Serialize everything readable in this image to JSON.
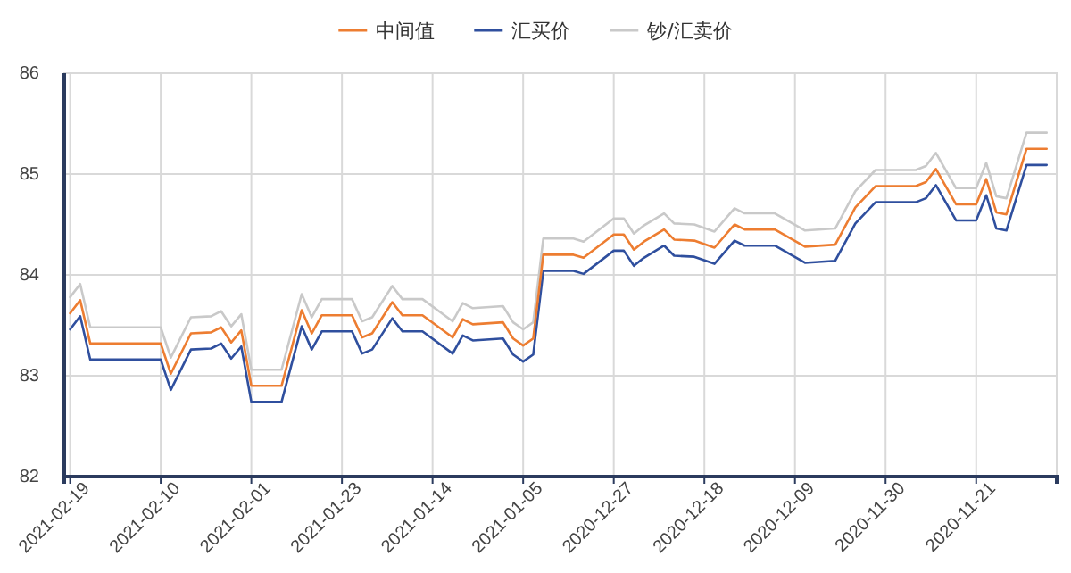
{
  "chart_data": {
    "type": "line",
    "x": [
      "2021-02-19",
      "2021-02-18",
      "2021-02-17",
      "2021-02-10",
      "2021-02-09",
      "2021-02-07",
      "2021-02-05",
      "2021-02-04",
      "2021-02-03",
      "2021-02-02",
      "2021-02-01",
      "2021-01-29",
      "2021-01-27",
      "2021-01-26",
      "2021-01-25",
      "2021-01-22",
      "2021-01-21",
      "2021-01-20",
      "2021-01-18",
      "2021-01-17",
      "2021-01-15",
      "2021-01-12",
      "2021-01-11",
      "2021-01-10",
      "2021-01-07",
      "2021-01-06",
      "2021-01-05",
      "2021-01-04",
      "2021-01-03",
      "2020-12-31",
      "2020-12-30",
      "2020-12-27",
      "2020-12-26",
      "2020-12-25",
      "2020-12-24",
      "2020-12-22",
      "2020-12-21",
      "2020-12-19",
      "2020-12-17",
      "2020-12-15",
      "2020-12-14",
      "2020-12-11",
      "2020-12-08",
      "2020-12-05",
      "2020-12-03",
      "2020-12-01",
      "2020-11-27",
      "2020-11-26",
      "2020-11-25",
      "2020-11-23",
      "2020-11-21",
      "2020-11-20",
      "2020-11-19",
      "2020-11-18",
      "2020-11-16",
      "2020-11-14"
    ],
    "series": [
      {
        "name": "中间值",
        "color": "#ed7d31",
        "values": [
          83.62,
          83.75,
          83.32,
          83.32,
          83.02,
          83.42,
          83.43,
          83.48,
          83.33,
          83.45,
          82.9,
          82.9,
          83.65,
          83.42,
          83.6,
          83.6,
          83.38,
          83.42,
          83.73,
          83.6,
          83.6,
          83.38,
          83.56,
          83.51,
          83.53,
          83.37,
          83.3,
          83.37,
          84.2,
          84.2,
          84.17,
          84.4,
          84.4,
          84.25,
          84.33,
          84.45,
          84.35,
          84.34,
          84.27,
          84.5,
          84.45,
          84.45,
          84.28,
          84.3,
          84.67,
          84.88,
          84.88,
          84.92,
          85.05,
          84.7,
          84.7,
          84.95,
          84.62,
          84.6,
          85.25,
          85.25
        ]
      },
      {
        "name": "汇买价",
        "color": "#2f4f9e",
        "values": [
          83.46,
          83.59,
          83.16,
          83.16,
          82.86,
          83.26,
          83.27,
          83.32,
          83.17,
          83.29,
          82.74,
          82.74,
          83.49,
          83.26,
          83.44,
          83.44,
          83.22,
          83.26,
          83.57,
          83.44,
          83.44,
          83.22,
          83.4,
          83.35,
          83.37,
          83.21,
          83.14,
          83.21,
          84.04,
          84.04,
          84.01,
          84.24,
          84.24,
          84.09,
          84.17,
          84.29,
          84.19,
          84.18,
          84.11,
          84.34,
          84.29,
          84.29,
          84.12,
          84.14,
          84.51,
          84.72,
          84.72,
          84.76,
          84.89,
          84.54,
          84.54,
          84.79,
          84.46,
          84.44,
          85.09,
          85.09
        ]
      },
      {
        "name": "钞/汇卖价",
        "color": "#c9c9c9",
        "values": [
          83.78,
          83.91,
          83.48,
          83.48,
          83.18,
          83.58,
          83.59,
          83.64,
          83.49,
          83.61,
          83.06,
          83.06,
          83.81,
          83.58,
          83.76,
          83.76,
          83.54,
          83.58,
          83.89,
          83.76,
          83.76,
          83.54,
          83.72,
          83.67,
          83.69,
          83.53,
          83.46,
          83.53,
          84.36,
          84.36,
          84.33,
          84.56,
          84.56,
          84.41,
          84.49,
          84.61,
          84.51,
          84.5,
          84.43,
          84.66,
          84.61,
          84.61,
          84.44,
          84.46,
          84.83,
          85.04,
          85.04,
          85.08,
          85.21,
          84.86,
          84.86,
          85.11,
          84.78,
          84.76,
          85.41,
          85.41
        ]
      }
    ],
    "xlim": [
      "2021-02-19T14:00",
      "2020-11-13"
    ],
    "xticks": [
      "2021-02-19",
      "2021-02-10",
      "2021-02-01",
      "2021-01-23",
      "2021-01-14",
      "2021-01-05",
      "2020-12-27",
      "2020-12-18",
      "2020-12-09",
      "2020-11-30",
      "2020-11-21"
    ],
    "ylim": [
      82,
      86
    ],
    "yticks": [
      82,
      83,
      84,
      85,
      86
    ],
    "grid": true,
    "legend": "top",
    "marker": "none",
    "line_style": "solid"
  }
}
